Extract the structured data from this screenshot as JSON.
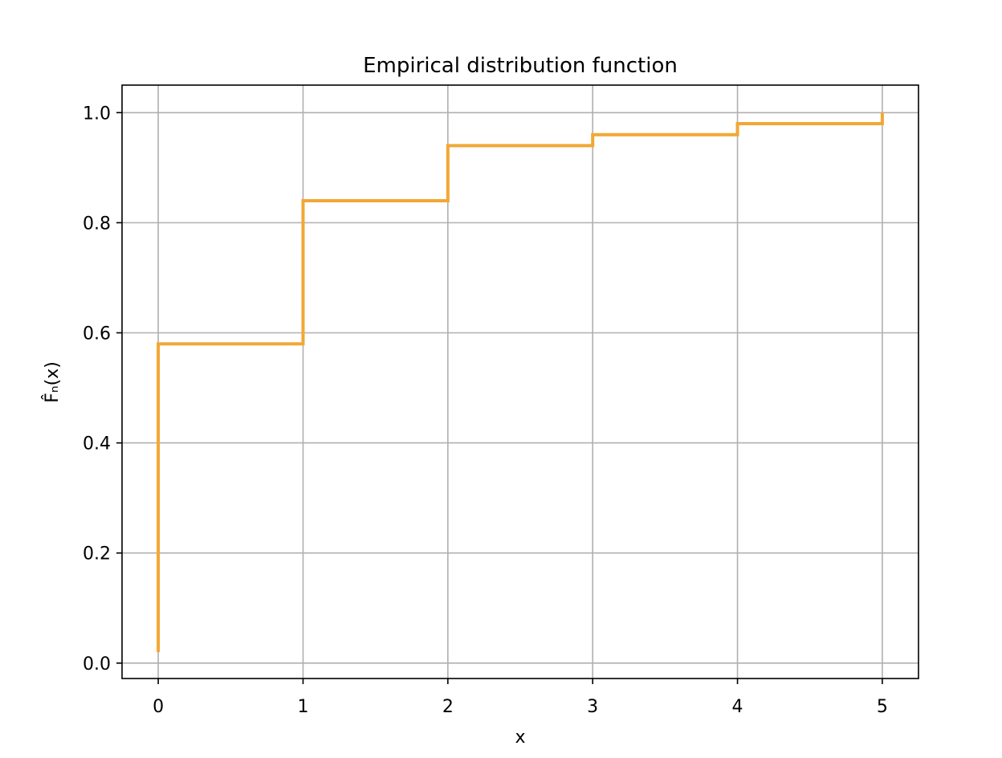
{
  "chart_data": {
    "type": "line",
    "step": "post",
    "title": "Empirical distribution function",
    "xlabel": "x",
    "ylabel": "F̂ₙ(x)",
    "xlim": [
      -0.25,
      5.25
    ],
    "ylim": [
      -0.028,
      1.05
    ],
    "xticks": [
      0,
      1,
      2,
      3,
      4,
      5
    ],
    "xtick_labels": [
      "0",
      "1",
      "2",
      "3",
      "4",
      "5"
    ],
    "yticks": [
      0.0,
      0.2,
      0.4,
      0.6,
      0.8,
      1.0
    ],
    "ytick_labels": [
      "0.0",
      "0.2",
      "0.4",
      "0.6",
      "0.8",
      "1.0"
    ],
    "grid": true,
    "series": [
      {
        "color": "#f2a735",
        "x": [
          0,
          0,
          1,
          2,
          3,
          4,
          5,
          5
        ],
        "y": [
          0.02,
          0.58,
          0.84,
          0.94,
          0.96,
          0.98,
          0.98,
          1.0
        ]
      }
    ]
  }
}
